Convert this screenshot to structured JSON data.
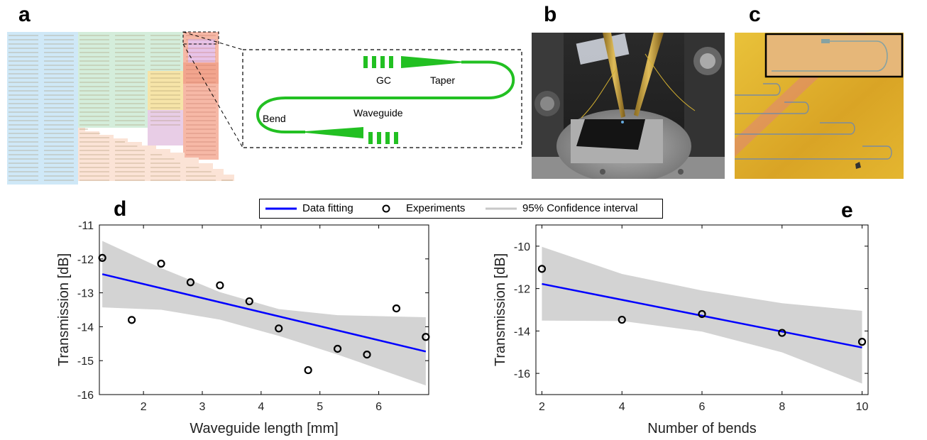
{
  "panels": {
    "a": {
      "letter": "a",
      "schematic_labels": {
        "gc": "GC",
        "taper": "Taper",
        "bend": "Bend",
        "waveguide": "Waveguide"
      }
    },
    "b": {
      "letter": "b"
    },
    "c": {
      "letter": "c"
    },
    "d": {
      "letter": "d"
    },
    "e": {
      "letter": "e"
    }
  },
  "legend": {
    "fit_label": "Data fitting",
    "exp_label": "Experiments",
    "ci_label": "95% Confidence interval"
  },
  "colors": {
    "fit": "#0000ff",
    "ci": "#d3d3d3",
    "schematic": "#22c022"
  },
  "chart_data": [
    {
      "type": "scatter",
      "panel": "d",
      "xlabel": "Waveguide length [mm]",
      "ylabel": "Transmission [dB]",
      "xlim": [
        1.25,
        6.85
      ],
      "ylim": [
        -16,
        -11
      ],
      "xticks": [
        2,
        3,
        4,
        5,
        6
      ],
      "yticks": [
        -16,
        -15,
        -14,
        -13,
        -12,
        -11
      ],
      "series": [
        {
          "name": "Experiments",
          "x": [
            1.3,
            1.8,
            2.3,
            2.8,
            3.3,
            3.8,
            4.3,
            4.8,
            5.3,
            5.8,
            6.3,
            6.8
          ],
          "y": [
            -11.97,
            -13.8,
            -12.14,
            -12.69,
            -12.78,
            -13.25,
            -14.05,
            -15.28,
            -14.65,
            -14.82,
            -13.46,
            -14.3
          ]
        }
      ],
      "fit": {
        "x": [
          1.3,
          6.8
        ],
        "y": [
          -12.45,
          -14.73
        ]
      },
      "ci": {
        "x": [
          1.3,
          2.3,
          3.3,
          4.3,
          5.3,
          6.8
        ],
        "upper": [
          -11.47,
          -12.27,
          -12.98,
          -13.48,
          -13.66,
          -13.72
        ],
        "lower": [
          -13.43,
          -13.5,
          -13.79,
          -14.27,
          -14.82,
          -15.73
        ]
      }
    },
    {
      "type": "scatter",
      "panel": "e",
      "xlabel": "Number of bends",
      "ylabel": "Transmission [dB]",
      "xlim": [
        1.85,
        10.15
      ],
      "ylim": [
        -17,
        -9
      ],
      "xticks": [
        2,
        4,
        6,
        8,
        10
      ],
      "yticks": [
        -16,
        -14,
        -12,
        -10
      ],
      "series": [
        {
          "name": "Experiments",
          "x": [
            2,
            4,
            6,
            8,
            10
          ],
          "y": [
            -11.07,
            -13.47,
            -13.2,
            -14.09,
            -14.51
          ]
        }
      ],
      "fit": {
        "x": [
          2,
          10
        ],
        "y": [
          -11.78,
          -14.78
        ]
      },
      "ci": {
        "x": [
          2,
          4,
          6,
          8,
          10
        ],
        "upper": [
          -10.03,
          -11.31,
          -12.09,
          -12.69,
          -13.05
        ],
        "lower": [
          -13.51,
          -13.53,
          -14.03,
          -15.01,
          -16.48
        ]
      }
    }
  ]
}
